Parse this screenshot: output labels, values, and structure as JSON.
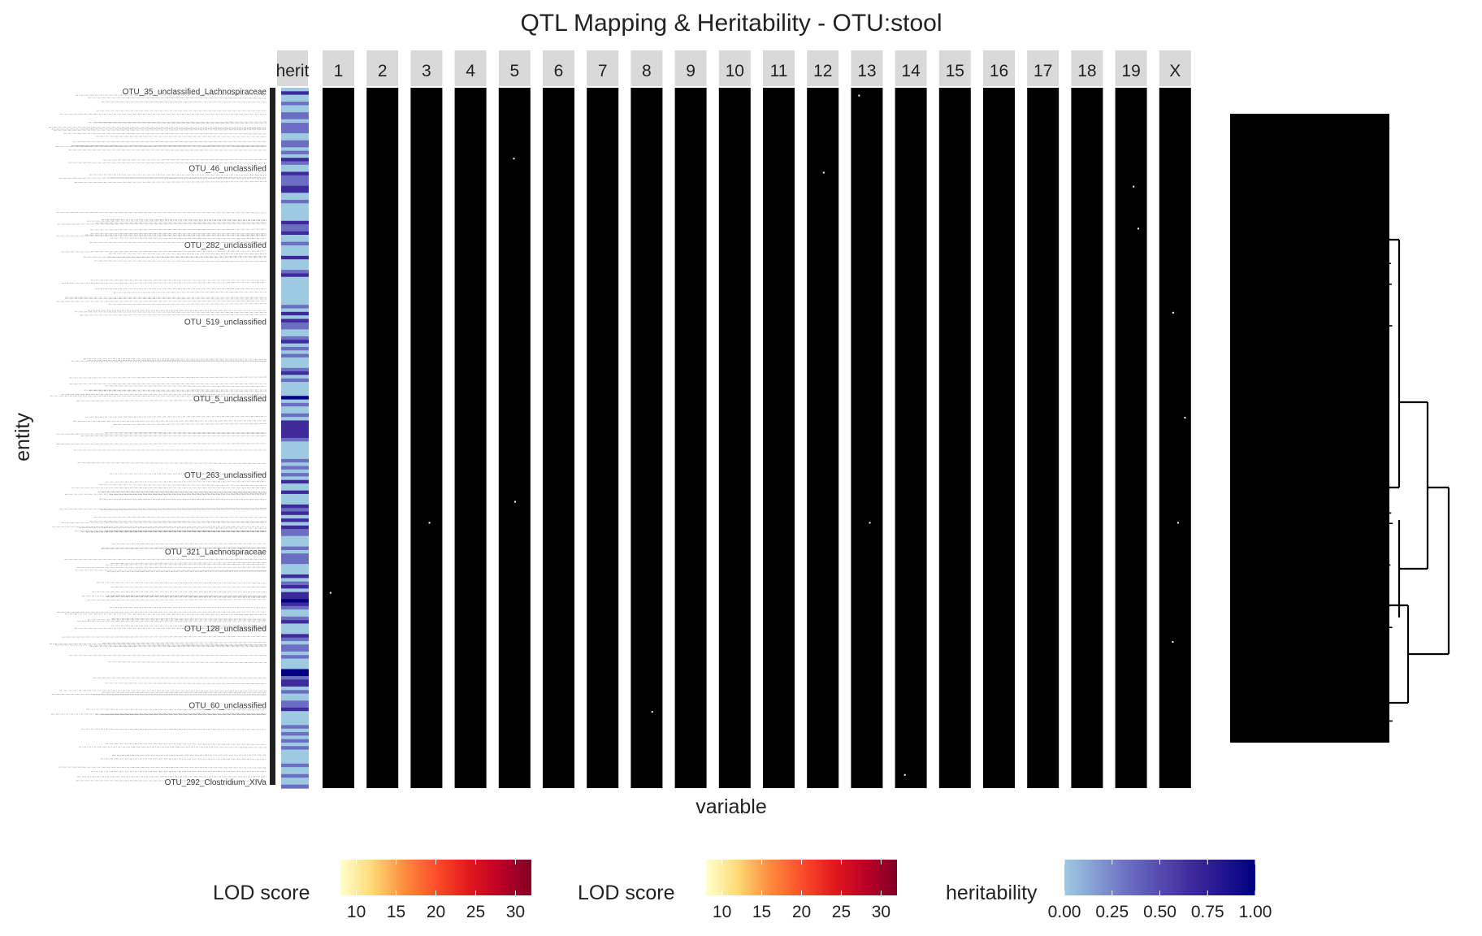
{
  "chart_data": {
    "type": "heatmap",
    "title": "QTL Mapping & Heritability - OTU:stool",
    "xlabel": "variable",
    "ylabel": "entity",
    "heritability_facet_label": "herit",
    "chromosome_facets": [
      "1",
      "2",
      "3",
      "4",
      "5",
      "6",
      "7",
      "8",
      "9",
      "10",
      "11",
      "12",
      "13",
      "14",
      "15",
      "16",
      "17",
      "18",
      "19",
      "X"
    ],
    "lod_cell_fill_below_threshold": "#000000",
    "sparse_lod_hits": [
      {
        "chromosome": "1",
        "entity_fraction": 0.72
      },
      {
        "chromosome": "3",
        "entity_fraction": 0.62
      },
      {
        "chromosome": "5",
        "entity_fraction": 0.1
      },
      {
        "chromosome": "5",
        "entity_fraction": 0.59
      },
      {
        "chromosome": "8",
        "entity_fraction": 0.89
      },
      {
        "chromosome": "12",
        "entity_fraction": 0.12
      },
      {
        "chromosome": "13",
        "entity_fraction": 0.01
      },
      {
        "chromosome": "13",
        "entity_fraction": 0.62
      },
      {
        "chromosome": "14",
        "entity_fraction": 0.98
      },
      {
        "chromosome": "19",
        "entity_fraction": 0.14
      },
      {
        "chromosome": "19",
        "entity_fraction": 0.2
      },
      {
        "chromosome": "X",
        "entity_fraction": 0.32
      },
      {
        "chromosome": "X",
        "entity_fraction": 0.47
      },
      {
        "chromosome": "X",
        "entity_fraction": 0.62
      },
      {
        "chromosome": "X",
        "entity_fraction": 0.79
      }
    ],
    "entity_labels_legible": [
      "OTU_35_unclassified_Lachnospiraceae",
      "OTU_46_unclassified",
      "OTU_282_unclassified",
      "OTU_519_unclassified",
      "OTU_5_unclassified",
      "OTU_263_unclassified",
      "OTU_321_Lachnospiraceae",
      "OTU_128_unclassified",
      "OTU_60_unclassified",
      "OTU_292_Clostridium_XIVa"
    ],
    "legends": [
      {
        "title": "LOD score",
        "ticks": [
          "10",
          "15",
          "20",
          "25",
          "30"
        ],
        "range": [
          8,
          32
        ],
        "colors": [
          "#ffffcc",
          "#fed976",
          "#fd8d3c",
          "#fc4e2a",
          "#e31a1c",
          "#bd0026",
          "#800026"
        ]
      },
      {
        "title": "LOD score",
        "ticks": [
          "10",
          "15",
          "20",
          "25",
          "30"
        ],
        "range": [
          8,
          32
        ],
        "colors": [
          "#ffffcc",
          "#fed976",
          "#fd8d3c",
          "#fc4e2a",
          "#e31a1c",
          "#bd0026",
          "#800026"
        ]
      },
      {
        "title": "heritability",
        "ticks": [
          "0.00",
          "0.25",
          "0.50",
          "0.75",
          "1.00"
        ],
        "range": [
          0,
          1
        ],
        "colors": [
          "#9ecae1",
          "#6b6ec2",
          "#3f2a9c",
          "#000080"
        ]
      }
    ],
    "legend_placement": "bottom",
    "dendrogram": "right",
    "grid": false
  }
}
